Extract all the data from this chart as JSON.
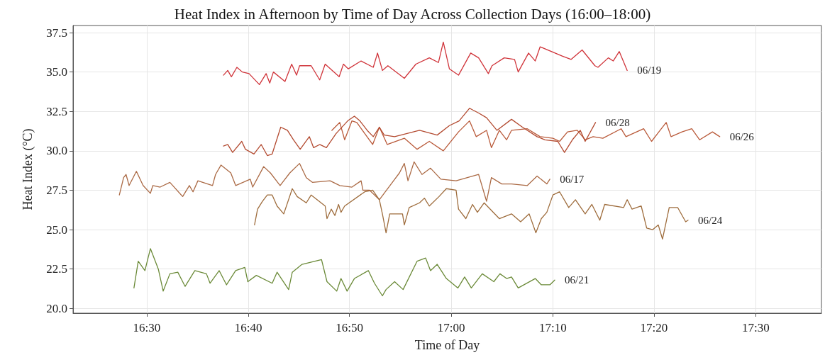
{
  "chart_data": {
    "type": "line",
    "title": "Heat Index in Afternoon by Time of Day Across Collection Days (16:00–18:00)",
    "xlabel": "Time of Day",
    "ylabel": "Heat Index (°C)",
    "xlim": [
      16.379,
      17.608
    ],
    "ylim": [
      19.7,
      37.95
    ],
    "xticks": [
      {
        "value": 16.5,
        "label": "16:30"
      },
      {
        "value": 16.667,
        "label": "16:40"
      },
      {
        "value": 16.833,
        "label": "16:50"
      },
      {
        "value": 17,
        "label": "17:00"
      },
      {
        "value": 17.167,
        "label": "17:10"
      },
      {
        "value": 17.333,
        "label": "17:20"
      },
      {
        "value": 17.5,
        "label": "17:30"
      }
    ],
    "yticks": [
      {
        "value": 20,
        "label": "20.0"
      },
      {
        "value": 22.5,
        "label": "22.5"
      },
      {
        "value": 25,
        "label": "25.0"
      },
      {
        "value": 27.5,
        "label": "27.5"
      },
      {
        "value": 30,
        "label": "30.0"
      },
      {
        "value": 32.5,
        "label": "32.5"
      },
      {
        "value": 35,
        "label": "35.0"
      },
      {
        "value": 37.5,
        "label": "37.5"
      }
    ],
    "grid": true,
    "marker": "none",
    "line_style": "solid",
    "series": [
      {
        "name": "06/17",
        "color": "#ab6a45",
        "x": [
          16.455,
          16.462,
          16.466,
          16.471,
          16.483,
          16.494,
          16.506,
          16.51,
          16.522,
          16.538,
          16.559,
          16.57,
          16.576,
          16.584,
          16.608,
          16.613,
          16.622,
          16.638,
          16.646,
          16.67,
          16.674,
          16.692,
          16.703,
          16.719,
          16.735,
          16.751,
          16.762,
          16.772,
          16.801,
          16.817,
          16.837,
          16.852,
          16.855,
          16.866,
          16.882,
          16.915,
          16.923,
          16.929,
          16.939,
          16.952,
          16.966,
          16.983,
          17.008,
          17.045,
          17.058,
          17.066,
          17.083,
          17.099,
          17.125,
          17.141,
          17.157,
          17.162
        ],
        "values": [
          27.2,
          28.3,
          28.5,
          27.8,
          28.7,
          27.8,
          27.3,
          27.8,
          27.7,
          28.0,
          27.1,
          27.8,
          27.4,
          28.1,
          27.8,
          28.5,
          29.1,
          28.6,
          27.8,
          28.2,
          27.7,
          29.0,
          28.6,
          27.8,
          28.6,
          29.2,
          28.3,
          28.0,
          28.1,
          27.8,
          27.7,
          28.1,
          27.5,
          27.5,
          26.9,
          28.6,
          29.2,
          28.1,
          29.3,
          28.5,
          28.9,
          28.2,
          28.1,
          28.5,
          26.8,
          28.3,
          27.9,
          27.9,
          27.8,
          28.4,
          27.9,
          28.2
        ]
      },
      {
        "name": "06/19",
        "color": "#d0343a",
        "x": [
          16.626,
          16.633,
          16.639,
          16.648,
          16.657,
          16.668,
          16.685,
          16.696,
          16.702,
          16.708,
          16.727,
          16.738,
          16.746,
          16.751,
          16.77,
          16.784,
          16.793,
          16.816,
          16.823,
          16.831,
          16.852,
          16.872,
          16.879,
          16.887,
          16.896,
          16.923,
          16.942,
          16.964,
          16.979,
          16.987,
          16.997,
          17.012,
          17.032,
          17.045,
          17.061,
          17.067,
          17.087,
          17.104,
          17.11,
          17.127,
          17.138,
          17.146,
          17.183,
          17.197,
          17.215,
          17.236,
          17.241,
          17.258,
          17.266,
          17.276,
          17.289
        ],
        "values": [
          34.8,
          35.1,
          34.7,
          35.3,
          35.0,
          34.9,
          34.2,
          34.9,
          34.3,
          35.0,
          34.4,
          35.5,
          34.8,
          35.4,
          35.4,
          34.5,
          35.5,
          34.7,
          35.5,
          35.2,
          35.7,
          35.3,
          36.2,
          35.1,
          35.4,
          34.6,
          35.5,
          35.9,
          35.6,
          36.9,
          35.2,
          34.8,
          36.2,
          35.9,
          34.9,
          35.4,
          35.9,
          35.8,
          35.0,
          36.2,
          35.7,
          36.6,
          36.0,
          35.8,
          36.4,
          35.4,
          35.3,
          35.9,
          35.7,
          36.3,
          35.1
        ]
      },
      {
        "name": "06/21",
        "color": "#6b8a38",
        "x": [
          16.479,
          16.486,
          16.497,
          16.506,
          16.519,
          16.527,
          16.538,
          16.551,
          16.563,
          16.579,
          16.598,
          16.604,
          16.619,
          16.631,
          16.646,
          16.661,
          16.666,
          16.68,
          16.706,
          16.714,
          16.733,
          16.739,
          16.755,
          16.787,
          16.796,
          16.812,
          16.819,
          16.829,
          16.841,
          16.864,
          16.874,
          16.887,
          16.893,
          16.907,
          16.921,
          16.944,
          16.958,
          16.966,
          16.977,
          16.992,
          17.011,
          17.022,
          17.033,
          17.051,
          17.07,
          17.08,
          17.091,
          17.099,
          17.11,
          17.138,
          17.148,
          17.162,
          17.17
        ],
        "values": [
          21.3,
          23.0,
          22.4,
          23.8,
          22.5,
          21.1,
          22.2,
          22.3,
          21.4,
          22.4,
          22.2,
          21.6,
          22.4,
          21.5,
          22.4,
          22.6,
          21.7,
          22.1,
          21.6,
          22.3,
          21.2,
          22.3,
          22.8,
          23.1,
          21.7,
          21.1,
          21.9,
          21.1,
          21.9,
          22.4,
          21.6,
          20.8,
          21.2,
          21.7,
          21.2,
          23.0,
          23.2,
          22.4,
          22.8,
          21.9,
          21.3,
          22.0,
          21.3,
          22.2,
          21.7,
          22.2,
          21.9,
          22.0,
          21.3,
          21.9,
          21.5,
          21.5,
          21.8
        ]
      },
      {
        "name": "06/24",
        "color": "#9e6c3c",
        "x": [
          16.677,
          16.682,
          16.69,
          16.698,
          16.706,
          16.714,
          16.725,
          16.739,
          16.747,
          16.762,
          16.77,
          16.793,
          16.796,
          16.803,
          16.809,
          16.815,
          16.819,
          16.825,
          16.858,
          16.871,
          16.882,
          16.887,
          16.893,
          16.899,
          16.92,
          16.923,
          16.931,
          16.948,
          16.956,
          16.964,
          16.98,
          16.992,
          17.008,
          17.012,
          17.024,
          17.035,
          17.043,
          17.054,
          17.079,
          17.099,
          17.114,
          17.128,
          17.139,
          17.148,
          17.157,
          17.167,
          17.178,
          17.193,
          17.204,
          17.22,
          17.231,
          17.244,
          17.252,
          17.283,
          17.289,
          17.297,
          17.312,
          17.321,
          17.331,
          17.34,
          17.347,
          17.358,
          17.372,
          17.385,
          17.389
        ],
        "values": [
          25.3,
          26.3,
          26.8,
          27.2,
          27.2,
          26.5,
          26.0,
          27.6,
          27.1,
          26.7,
          27.2,
          26.5,
          25.7,
          26.3,
          25.9,
          26.6,
          26.1,
          26.5,
          27.4,
          27.5,
          26.9,
          26.0,
          24.8,
          26.0,
          26.0,
          25.3,
          26.4,
          26.7,
          27.0,
          26.5,
          27.1,
          27.6,
          27.5,
          26.3,
          25.7,
          26.6,
          26.1,
          26.7,
          25.7,
          26.0,
          25.5,
          26.0,
          24.8,
          25.7,
          26.1,
          27.2,
          27.4,
          26.4,
          26.9,
          26.0,
          26.6,
          25.6,
          26.6,
          26.4,
          26.9,
          26.3,
          26.5,
          25.1,
          25.0,
          25.3,
          24.4,
          26.4,
          26.4,
          25.5,
          25.6
        ]
      },
      {
        "name": "06/26",
        "color": "#b95a3a",
        "x": [
          16.804,
          16.817,
          16.825,
          16.837,
          16.845,
          16.871,
          16.882,
          16.895,
          16.923,
          16.944,
          16.964,
          16.987,
          17.012,
          17.03,
          17.041,
          17.058,
          17.066,
          17.079,
          17.091,
          17.099,
          17.125,
          17.146,
          17.167,
          17.178,
          17.191,
          17.207,
          17.22,
          17.233,
          17.249,
          17.279,
          17.287,
          17.316,
          17.329,
          17.341,
          17.353,
          17.361,
          17.379,
          17.395,
          17.408,
          17.429,
          17.441
        ],
        "values": [
          31.3,
          31.8,
          30.7,
          31.9,
          31.8,
          30.4,
          31.5,
          30.4,
          30.8,
          30.1,
          30.6,
          30.0,
          31.2,
          31.9,
          30.9,
          31.3,
          30.2,
          31.3,
          30.7,
          31.3,
          31.4,
          30.9,
          30.8,
          30.6,
          31.2,
          31.3,
          30.7,
          30.9,
          30.8,
          31.4,
          30.9,
          31.4,
          30.6,
          31.2,
          31.8,
          30.9,
          31.2,
          31.4,
          30.7,
          31.2,
          30.9
        ]
      },
      {
        "name": "06/28",
        "color": "#b34a30",
        "x": [
          16.626,
          16.633,
          16.641,
          16.656,
          16.662,
          16.676,
          16.688,
          16.698,
          16.706,
          16.72,
          16.731,
          16.741,
          16.752,
          16.767,
          16.774,
          16.784,
          16.795,
          16.811,
          16.83,
          16.841,
          16.85,
          16.862,
          16.872,
          16.882,
          16.89,
          16.907,
          16.948,
          16.977,
          16.997,
          17.013,
          17.03,
          17.045,
          17.058,
          17.075,
          17.099,
          17.117,
          17.141,
          17.154,
          17.175,
          17.186,
          17.199,
          17.212,
          17.22,
          17.237
        ],
        "values": [
          30.3,
          30.4,
          29.9,
          30.6,
          30.1,
          29.8,
          30.4,
          29.7,
          29.8,
          31.5,
          31.3,
          30.7,
          30.1,
          30.9,
          30.2,
          30.4,
          30.2,
          31.1,
          31.9,
          32.2,
          31.9,
          31.3,
          30.9,
          31.5,
          31.0,
          30.9,
          31.3,
          31.0,
          31.6,
          31.9,
          32.7,
          32.4,
          32.1,
          31.3,
          32.0,
          31.5,
          30.9,
          30.7,
          30.6,
          29.9,
          30.7,
          31.3,
          30.6,
          31.8
        ]
      }
    ]
  }
}
